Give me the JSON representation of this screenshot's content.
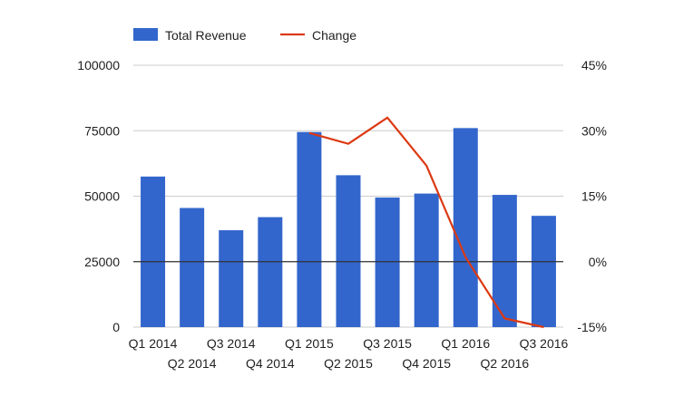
{
  "chart_data": {
    "type": "bar",
    "categories": [
      "Q1 2014",
      "Q2 2014",
      "Q3 2014",
      "Q4 2014",
      "Q1 2015",
      "Q2 2015",
      "Q3 2015",
      "Q4 2015",
      "Q1 2016",
      "Q2 2016",
      "Q3 2016"
    ],
    "series": [
      {
        "name": "Total Revenue",
        "type": "bar",
        "axis": "left",
        "color": "#3366cc",
        "values": [
          57500,
          45500,
          37000,
          42000,
          74500,
          58000,
          49500,
          51000,
          76000,
          50500,
          42500
        ]
      },
      {
        "name": "Change",
        "type": "line",
        "axis": "right",
        "color": "#dc3912",
        "values": [
          null,
          null,
          null,
          null,
          29.5,
          27,
          33,
          22,
          1,
          -13,
          -15
        ]
      }
    ],
    "left_axis": {
      "ticks": [
        "0",
        "25000",
        "50000",
        "75000",
        "100000"
      ],
      "ylim": [
        0,
        100000
      ]
    },
    "right_axis": {
      "ticks": [
        "-15%",
        "0%",
        "15%",
        "30%",
        "45%"
      ],
      "ylim": [
        -15,
        45
      ]
    },
    "legend_position": "top-left",
    "grid": true,
    "zero_baseline_right_axis": true
  }
}
